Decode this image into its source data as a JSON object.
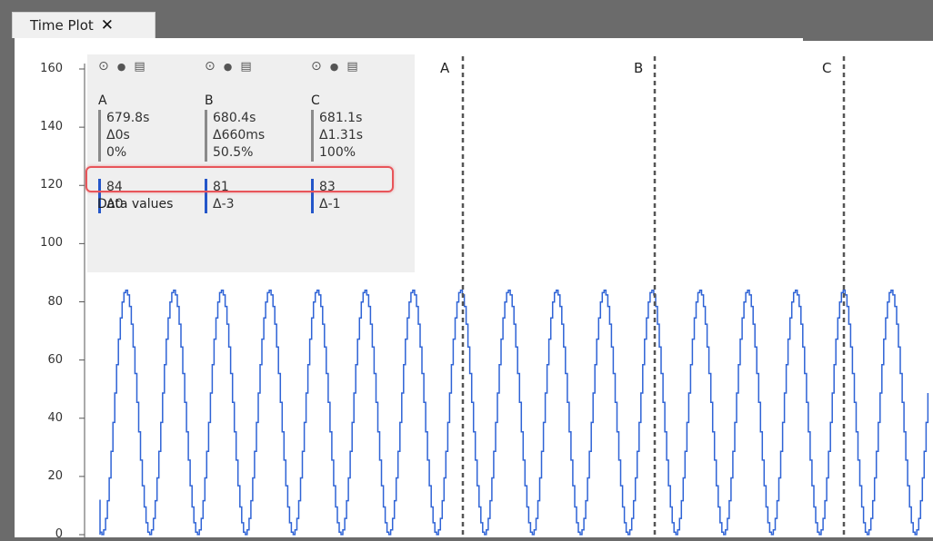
{
  "tab": {
    "label": "Time Plot",
    "close_glyph": "✕"
  },
  "cursor_panel": {
    "icons": [
      "target-icon",
      "pin-icon",
      "trash-icon"
    ],
    "columns": [
      {
        "name": "A",
        "time": "679.8s",
        "delta_time": "Δ0s",
        "percent": "0%",
        "value": "84",
        "delta_value": "Δ0"
      },
      {
        "name": "B",
        "time": "680.4s",
        "delta_time": "Δ660ms",
        "percent": "50.5%",
        "value": "81",
        "delta_value": "Δ-3"
      },
      {
        "name": "C",
        "time": "681.1s",
        "delta_time": "Δ1.31s",
        "percent": "100%",
        "value": "83",
        "delta_value": "Δ-1"
      }
    ],
    "data_values_heading": "Data values"
  },
  "cursors": [
    {
      "label": "A"
    },
    {
      "label": "B"
    },
    {
      "label": "C"
    }
  ],
  "colors": {
    "series": "#2f63d6",
    "cursor_line": "#555555",
    "highlight": "#e8555a",
    "panel_bg": "#efefef",
    "frame": "#6b6b6b"
  },
  "chart_data": {
    "type": "line",
    "title": "",
    "xlabel": "",
    "ylabel": "",
    "ylim": [
      0,
      160
    ],
    "y_ticks": [
      "0",
      "20",
      "40",
      "60",
      "80",
      "100",
      "120",
      "140",
      "160"
    ],
    "series": [
      {
        "shape": "sinusoid",
        "min": 0,
        "max": 84,
        "cycles_visible": 17.7
      }
    ]
  }
}
